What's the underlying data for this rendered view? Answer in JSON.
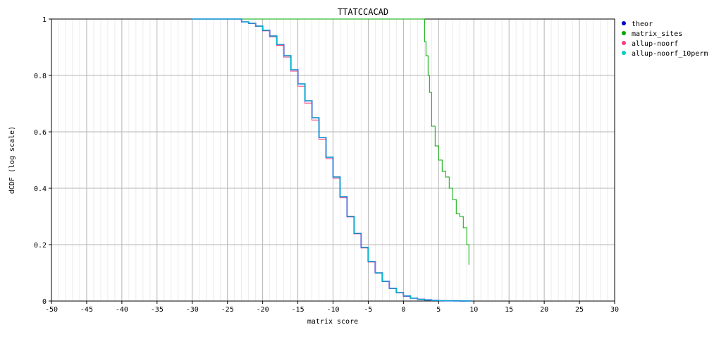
{
  "chart_data": {
    "type": "line",
    "title": "TTATCCACAD",
    "xlabel": "matrix score",
    "ylabel": "dCDF (log scale)",
    "xlim": [
      -50,
      30
    ],
    "ylim": [
      0,
      1
    ],
    "x_ticks": [
      -50,
      -45,
      -40,
      -35,
      -30,
      -25,
      -20,
      -15,
      -10,
      -5,
      0,
      5,
      10,
      15,
      20,
      25,
      30
    ],
    "y_ticks": [
      0,
      0.2,
      0.4,
      0.6,
      0.8,
      1
    ],
    "y_tick_labels": [
      "0",
      "0.2",
      "0.4",
      "0.6",
      "0.8",
      "1"
    ],
    "grid": true,
    "legend_position": "top-right",
    "series": [
      {
        "name": "theor",
        "color": "#0000cc",
        "x": [
          -30,
          -24,
          -23,
          -22,
          -21,
          -20,
          -19,
          -18,
          -17,
          -16,
          -15,
          -14,
          -13,
          -12,
          -11,
          -10,
          -9,
          -8,
          -7,
          -6,
          -5,
          -4,
          -3,
          -2,
          -1,
          0,
          1,
          2,
          3,
          4,
          5,
          6,
          7,
          8,
          9,
          9.5
        ],
        "y": [
          1,
          1,
          0.99,
          0.985,
          0.975,
          0.96,
          0.94,
          0.91,
          0.87,
          0.82,
          0.77,
          0.71,
          0.65,
          0.58,
          0.51,
          0.44,
          0.37,
          0.3,
          0.24,
          0.19,
          0.14,
          0.1,
          0.07,
          0.045,
          0.03,
          0.018,
          0.01,
          0.006,
          0.004,
          0.002,
          0.001,
          0.0007,
          0.0004,
          0.0002,
          0.0001,
          0
        ]
      },
      {
        "name": "matrix_sites",
        "color": "#00aa00",
        "x": [
          -25,
          2.7,
          3,
          3.2,
          3.5,
          3.7,
          4,
          4.5,
          5,
          5.5,
          6,
          6.5,
          7,
          7.5,
          8,
          8.5,
          9,
          9.3
        ],
        "y": [
          1,
          1,
          0.92,
          0.87,
          0.8,
          0.74,
          0.62,
          0.55,
          0.5,
          0.46,
          0.44,
          0.4,
          0.36,
          0.31,
          0.3,
          0.26,
          0.2,
          0.13
        ]
      },
      {
        "name": "allup-noorf",
        "color": "#ff4080",
        "x": [
          -30,
          -24,
          -23,
          -22,
          -21,
          -20,
          -19,
          -18,
          -17,
          -16,
          -15,
          -14,
          -13,
          -12,
          -11,
          -10,
          -9,
          -8,
          -7,
          -6,
          -5,
          -4,
          -3,
          -2,
          -1,
          0,
          1,
          2,
          3,
          4,
          5,
          6,
          7,
          8,
          9,
          9.5
        ],
        "y": [
          1,
          1,
          0.99,
          0.984,
          0.974,
          0.958,
          0.937,
          0.906,
          0.865,
          0.815,
          0.762,
          0.702,
          0.642,
          0.574,
          0.505,
          0.435,
          0.366,
          0.298,
          0.238,
          0.188,
          0.138,
          0.099,
          0.069,
          0.044,
          0.029,
          0.017,
          0.01,
          0.006,
          0.004,
          0.002,
          0.001,
          0.0007,
          0.0004,
          0.0002,
          0.0001,
          0
        ]
      },
      {
        "name": "allup-noorf_10perm",
        "color": "#00cccc",
        "x": [
          -30,
          -24,
          -23,
          -22,
          -21,
          -20,
          -19,
          -18,
          -17,
          -16,
          -15,
          -14,
          -13,
          -12,
          -11,
          -10,
          -9,
          -8,
          -7,
          -6,
          -5,
          -4,
          -3,
          -2,
          -1,
          0,
          1,
          2,
          3,
          4,
          5,
          6,
          7,
          8,
          9,
          9.5
        ],
        "y": [
          1,
          1,
          0.99,
          0.985,
          0.975,
          0.96,
          0.94,
          0.91,
          0.87,
          0.82,
          0.77,
          0.71,
          0.65,
          0.58,
          0.51,
          0.44,
          0.37,
          0.3,
          0.24,
          0.19,
          0.14,
          0.1,
          0.07,
          0.045,
          0.03,
          0.018,
          0.01,
          0.006,
          0.004,
          0.002,
          0.001,
          0.0007,
          0.0004,
          0.0002,
          0.0001,
          0
        ]
      }
    ]
  }
}
